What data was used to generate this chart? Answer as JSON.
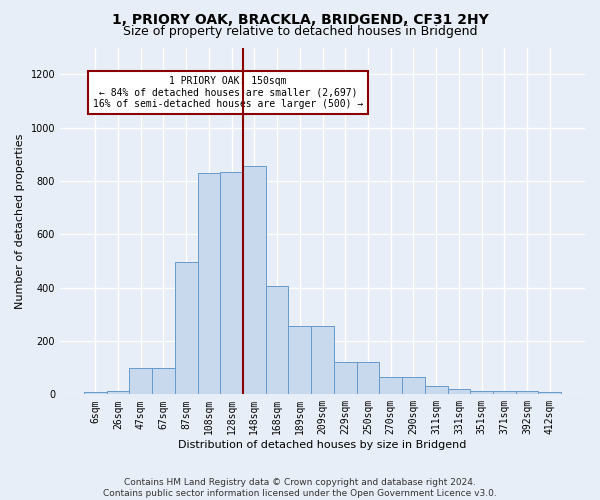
{
  "title": "1, PRIORY OAK, BRACKLA, BRIDGEND, CF31 2HY",
  "subtitle": "Size of property relative to detached houses in Bridgend",
  "xlabel": "Distribution of detached houses by size in Bridgend",
  "ylabel": "Number of detached properties",
  "footnote1": "Contains HM Land Registry data © Crown copyright and database right 2024.",
  "footnote2": "Contains public sector information licensed under the Open Government Licence v3.0.",
  "categories": [
    "6sqm",
    "26sqm",
    "47sqm",
    "67sqm",
    "87sqm",
    "108sqm",
    "128sqm",
    "148sqm",
    "168sqm",
    "189sqm",
    "209sqm",
    "229sqm",
    "250sqm",
    "270sqm",
    "290sqm",
    "311sqm",
    "331sqm",
    "351sqm",
    "371sqm",
    "392sqm",
    "412sqm"
  ],
  "values": [
    8,
    13,
    100,
    100,
    495,
    830,
    835,
    855,
    405,
    255,
    255,
    120,
    120,
    65,
    65,
    30,
    20,
    13,
    13,
    13,
    8
  ],
  "bar_color": "#c8d9ee",
  "bar_edge_color": "#6699cc",
  "vline_color": "#8b0000",
  "annotation_line1": "1 PRIORY OAK: 150sqm",
  "annotation_line2": "← 84% of detached houses are smaller (2,697)",
  "annotation_line3": "16% of semi-detached houses are larger (500) →",
  "ylim": [
    0,
    1300
  ],
  "yticks": [
    0,
    200,
    400,
    600,
    800,
    1000,
    1200
  ],
  "bg_color": "#e8eef7",
  "grid_color": "#ffffff",
  "title_fontsize": 10,
  "subtitle_fontsize": 9,
  "axis_label_fontsize": 8,
  "tick_fontsize": 7,
  "footnote_fontsize": 6.5,
  "vline_bin_index": 7
}
